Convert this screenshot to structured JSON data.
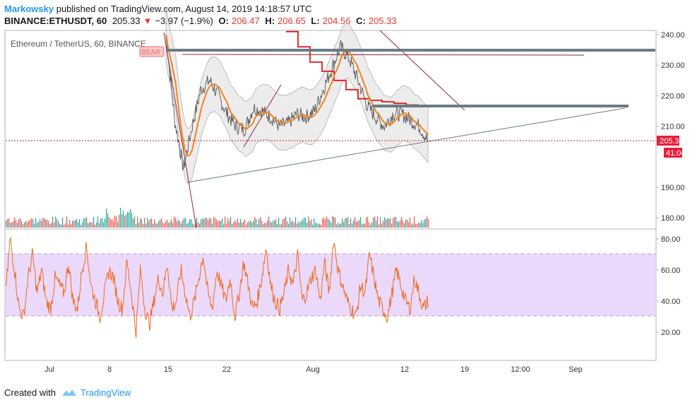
{
  "header": {
    "author": "Markowsky",
    "published": "published on TradingView.com, August 14, 2019 14:18:57 UTC",
    "symbol": "BINANCE:ETHUSDT, 60",
    "price": "205.33",
    "change_arrow": "▼",
    "change": "−3.97 (−1.9%)",
    "o_label": "O:",
    "o_val": "206.47",
    "h_label": "H:",
    "h_val": "206.65",
    "l_label": "L:",
    "l_val": "204.56",
    "c_label": "C:",
    "c_val": "205.33"
  },
  "legend": {
    "name": "Ethereum / TetherUS, 60, BINANCE",
    "bear_tag": "BEAR"
  },
  "price_badge": "205.33",
  "countdown_badge": "41:04",
  "colors": {
    "price_line": "#555555",
    "bollinger_fill": "#d9d9d9",
    "ma_orange": "#ef8422",
    "stop_red": "#e01b1b",
    "rsi_line": "#ee6c1e",
    "rsi_band": "#ead9fb",
    "resistance": "#6b7b86",
    "up_vol": "#26a69a",
    "down_vol": "#ef5350",
    "badge_red": "#e91e3a"
  },
  "footer": {
    "created": "Created with",
    "brand": "TradingView"
  },
  "chart_data": [
    {
      "type": "line",
      "title": "Ethereum / TetherUS, 60, BINANCE",
      "x_ticks": [
        "Jul",
        "8",
        "15",
        "22",
        "Aug",
        "12",
        "19",
        "12:00",
        "Sep"
      ],
      "y_ticks": [
        "240.00",
        "230.00",
        "220.00",
        "210.00",
        "190.00",
        "180.00"
      ],
      "ylim": [
        177,
        241
      ],
      "series": [
        {
          "x": [
            "Jul 15",
            "Jul 16",
            "Jul 17",
            "Jul 18",
            "Jul 19",
            "Jul 20",
            "Jul 21",
            "Jul 22",
            "Jul 23",
            "Jul 24",
            "Jul 25",
            "Jul 26",
            "Jul 27",
            "Jul 28",
            "Jul 29",
            "Jul 30",
            "Jul 31",
            "Aug 1",
            "Aug 2",
            "Aug 3",
            "Aug 4",
            "Aug 5",
            "Aug 6",
            "Aug 7",
            "Aug 8",
            "Aug 9",
            "Aug 10",
            "Aug 11",
            "Aug 12",
            "Aug 13",
            "Aug 14"
          ],
          "values": [
            240,
            212,
            196,
            210,
            222,
            225,
            220,
            214,
            210,
            209,
            216,
            215,
            213,
            210,
            211,
            214,
            213,
            215,
            222,
            229,
            236,
            232,
            225,
            217,
            213,
            210,
            214,
            214,
            212,
            210,
            205.33
          ]
        }
      ],
      "annotations": {
        "horizontal_levels": [
          235,
          217
        ],
        "last_price": 205.33
      }
    },
    {
      "type": "line",
      "title": "",
      "y_ticks": [
        "80.00",
        "60.00",
        "40.00",
        "20.00"
      ],
      "ylim": [
        10,
        85
      ],
      "bands": [
        30,
        70
      ],
      "series": [
        {
          "values": [
            45,
            80,
            60,
            35,
            30,
            55,
            70,
            45,
            60,
            40,
            35,
            55,
            50,
            45,
            65,
            40,
            35,
            60,
            75,
            50,
            40,
            30,
            45,
            60,
            55,
            40,
            35,
            65,
            45,
            20,
            60,
            35,
            25,
            40,
            55,
            45,
            65,
            35,
            40,
            60,
            45,
            30,
            40,
            55,
            70,
            45,
            35,
            60,
            50,
            40,
            55,
            30,
            45,
            65,
            50,
            35,
            40,
            55,
            75,
            50,
            40,
            35,
            45,
            60,
            50,
            70,
            40,
            45,
            55,
            60,
            40,
            65,
            45,
            80,
            60,
            50,
            40,
            35,
            30,
            50,
            45,
            70,
            55,
            40,
            35,
            30,
            45,
            60,
            50,
            40,
            35,
            55,
            45,
            35,
            40
          ]
        }
      ]
    }
  ]
}
